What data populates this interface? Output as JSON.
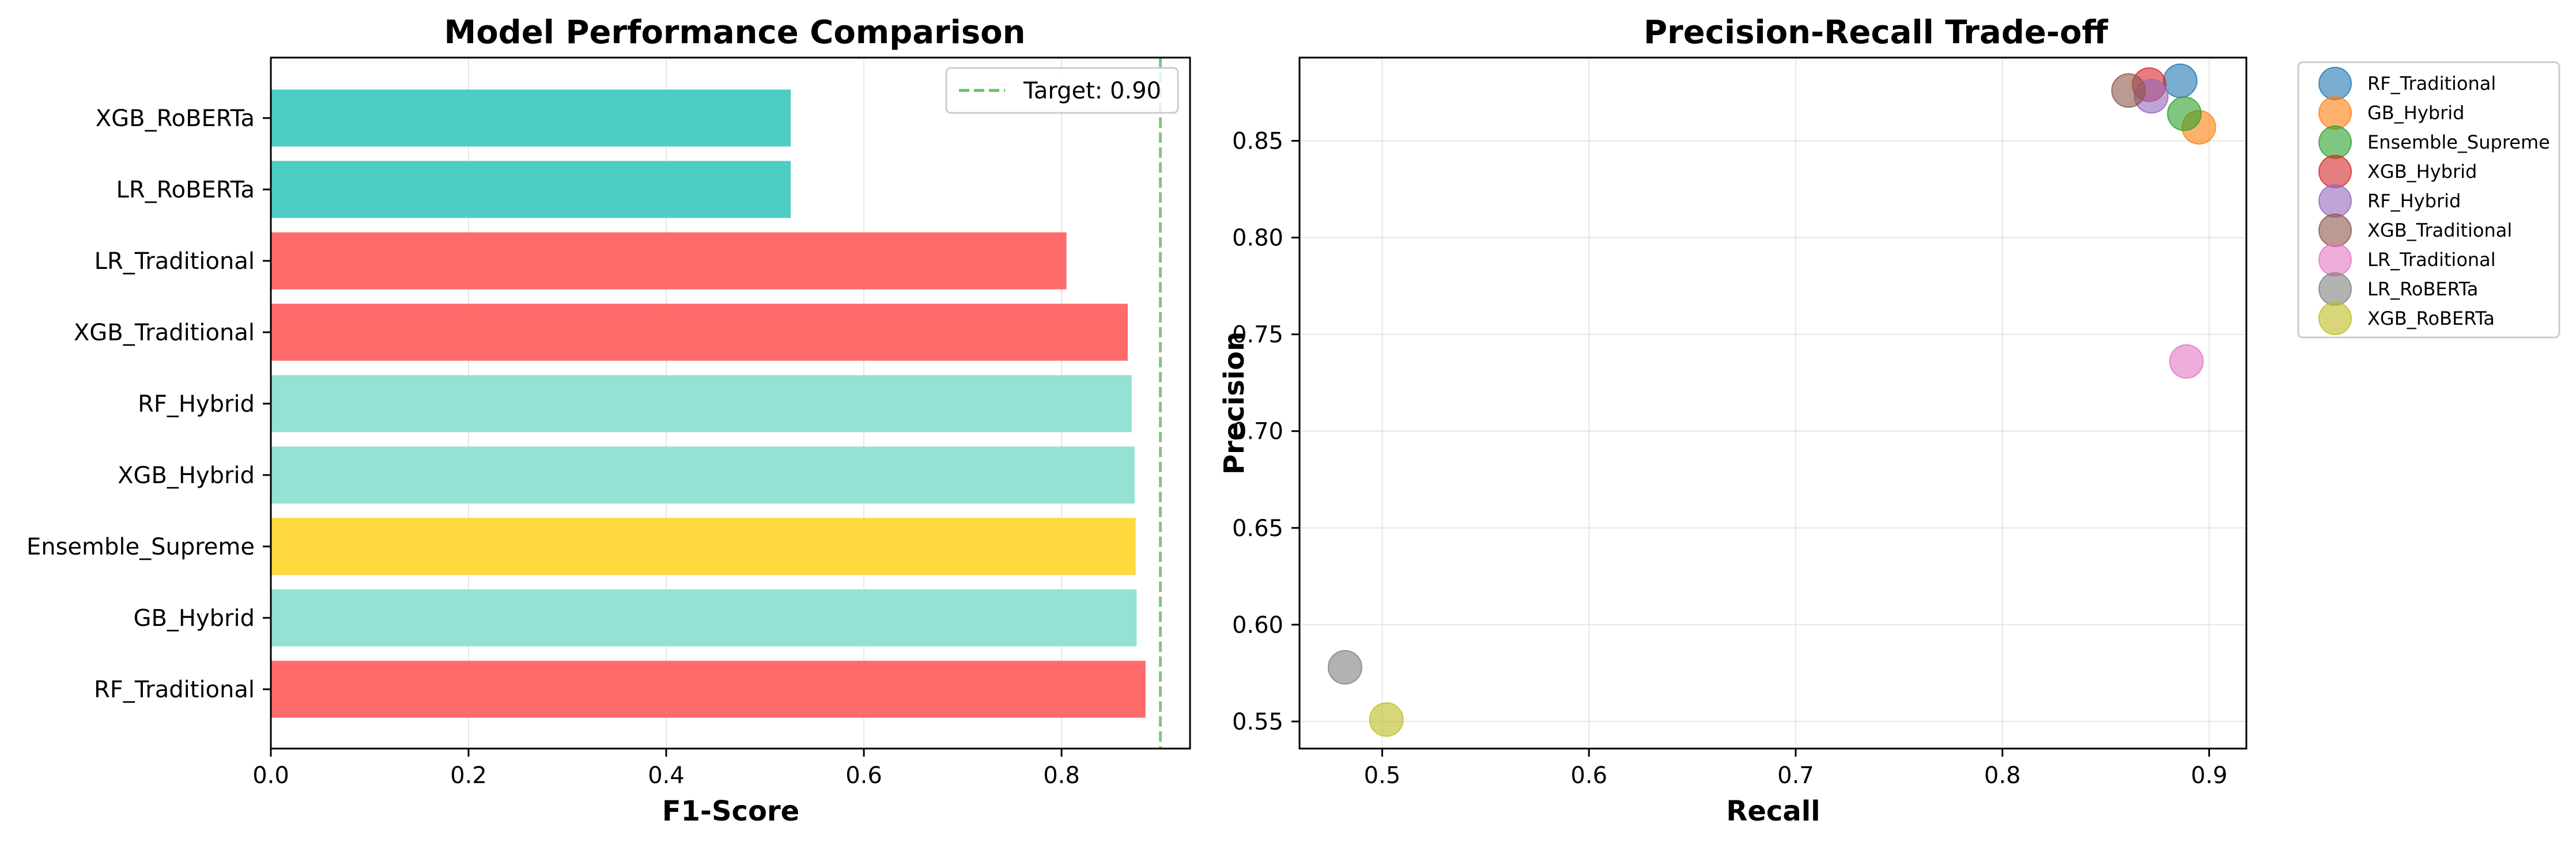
{
  "colors": {
    "traditional": "#ff6b6b",
    "roberta": "#4ecdc4",
    "hybrid": "#95e1d3",
    "ensemble": "#ffd93d",
    "target_line": "#2ca02c",
    "scatter_palette": [
      "#1f77b4",
      "#ff7f0e",
      "#2ca02c",
      "#d62728",
      "#9467bd",
      "#8c564b",
      "#e377c2",
      "#7f7f7f",
      "#bcbd22"
    ]
  },
  "chart_data": [
    {
      "type": "bar",
      "orientation": "horizontal",
      "title": "Model Performance Comparison",
      "xlabel": "F1-Score",
      "ylabel": "",
      "categories": [
        "RF_Traditional",
        "GB_Hybrid",
        "Ensemble_Supreme",
        "XGB_Hybrid",
        "RF_Hybrid",
        "XGB_Traditional",
        "LR_Traditional",
        "LR_RoBERTa",
        "XGB_RoBERTa"
      ],
      "values": [
        0.885,
        0.876,
        0.875,
        0.874,
        0.871,
        0.867,
        0.805,
        0.526,
        0.526
      ],
      "bar_groups": [
        "traditional",
        "hybrid",
        "ensemble",
        "hybrid",
        "hybrid",
        "traditional",
        "traditional",
        "roberta",
        "roberta"
      ],
      "xlim": [
        0.0,
        0.93
      ],
      "xticks": [
        "0.0",
        "0.2",
        "0.4",
        "0.6",
        "0.8"
      ],
      "xtick_values": [
        0.0,
        0.2,
        0.4,
        0.6,
        0.8
      ],
      "grid": "x",
      "reference_line": {
        "x": 0.9,
        "label": "Target: 0.90",
        "style": "dashed"
      },
      "legend_placement": "top-right"
    },
    {
      "type": "scatter",
      "title": "Precision-Recall Trade-off",
      "xlabel": "Recall",
      "ylabel": "Precision",
      "xlim": [
        0.46,
        0.918
      ],
      "ylim": [
        0.536,
        0.893
      ],
      "xticks": [
        "0.5",
        "0.6",
        "0.7",
        "0.8",
        "0.9"
      ],
      "xtick_values": [
        0.5,
        0.6,
        0.7,
        0.8,
        0.9
      ],
      "yticks": [
        "0.55",
        "0.60",
        "0.65",
        "0.70",
        "0.75",
        "0.80",
        "0.85"
      ],
      "ytick_values": [
        0.55,
        0.6,
        0.65,
        0.7,
        0.75,
        0.8,
        0.85
      ],
      "grid": "both",
      "legend_placement": "outside-right",
      "series": [
        {
          "name": "RF_Traditional",
          "x": 0.886,
          "y": 0.881
        },
        {
          "name": "GB_Hybrid",
          "x": 0.895,
          "y": 0.857
        },
        {
          "name": "Ensemble_Supreme",
          "x": 0.888,
          "y": 0.864
        },
        {
          "name": "XGB_Hybrid",
          "x": 0.871,
          "y": 0.879
        },
        {
          "name": "RF_Hybrid",
          "x": 0.872,
          "y": 0.873
        },
        {
          "name": "XGB_Traditional",
          "x": 0.861,
          "y": 0.876
        },
        {
          "name": "LR_Traditional",
          "x": 0.889,
          "y": 0.736
        },
        {
          "name": "LR_RoBERTa",
          "x": 0.482,
          "y": 0.578
        },
        {
          "name": "XGB_RoBERTa",
          "x": 0.502,
          "y": 0.551
        }
      ]
    }
  ]
}
